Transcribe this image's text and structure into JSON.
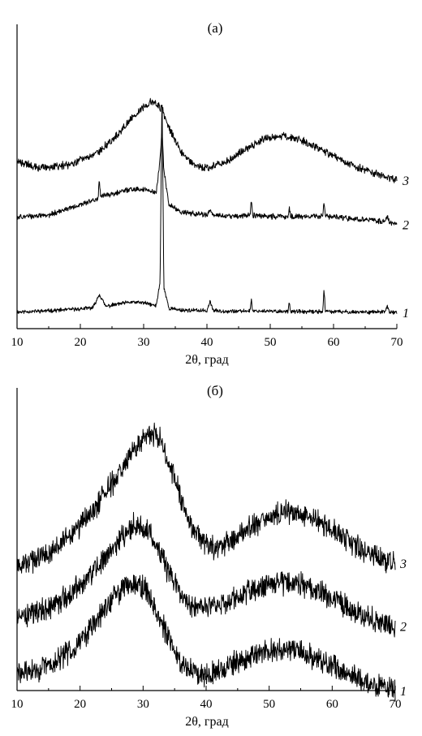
{
  "figure": {
    "panels": [
      {
        "title": "(a)",
        "xlabel": "2θ, град",
        "x_ticks": [
          "10",
          "20",
          "30",
          "40",
          "50",
          "60",
          "70"
        ]
      },
      {
        "title": "(б)",
        "xlabel": "2θ, град",
        "x_ticks": [
          "10",
          "20",
          "30",
          "40",
          "50",
          "60",
          "70"
        ]
      }
    ]
  },
  "chart_data": [
    {
      "type": "line",
      "title": "(a)",
      "xlabel": "2θ, град",
      "ylabel": "",
      "xlim": [
        10,
        70
      ],
      "y_ticks_shown": false,
      "series": [
        {
          "name": "1",
          "x": [
            10,
            15,
            20,
            22,
            23,
            24,
            26,
            28,
            30,
            32,
            32.6,
            32.9,
            33.2,
            34,
            36,
            40,
            40.5,
            41,
            45,
            46.8,
            47,
            47.2,
            50,
            52.8,
            53,
            53.2,
            56,
            58.3,
            58.5,
            58.7,
            62,
            66,
            68.2,
            68.5,
            68.8,
            70
          ],
          "y": [
            1.0,
            1.2,
            1.5,
            1.7,
            3.9,
            1.9,
            2.3,
            2.6,
            2.5,
            2.0,
            6.0,
            37.0,
            5.0,
            1.6,
            1.3,
            1.2,
            2.8,
            1.2,
            1.1,
            1.2,
            3.2,
            1.2,
            1.1,
            1.1,
            2.8,
            1.1,
            1.0,
            1.1,
            4.8,
            1.1,
            1.0,
            1.0,
            1.0,
            2.0,
            1.0,
            0.9
          ],
          "noise": 0.25
        },
        {
          "name": "2",
          "x": [
            10,
            15,
            20,
            22.8,
            23,
            23.2,
            26,
            28,
            30,
            32,
            32.6,
            32.9,
            33.2,
            34,
            36,
            40,
            40.5,
            41,
            45,
            46.8,
            47,
            47.2,
            50,
            52.8,
            53,
            53.2,
            56,
            58.3,
            58.5,
            58.7,
            62,
            66,
            68.2,
            68.5,
            68.8,
            70
          ],
          "y": [
            16.5,
            16.8,
            18.5,
            19.5,
            22.5,
            19.8,
            20.5,
            21.0,
            21.0,
            20.5,
            26.0,
            30.5,
            24.0,
            18.5,
            17.3,
            16.8,
            17.8,
            16.7,
            16.6,
            16.8,
            19.5,
            16.8,
            16.6,
            16.6,
            18.0,
            16.6,
            16.5,
            16.7,
            19.2,
            16.6,
            16.3,
            16.0,
            15.8,
            16.8,
            15.6,
            15.3
          ],
          "noise": 0.35
        },
        {
          "name": "3",
          "x": [
            10,
            14,
            18,
            22,
            25,
            28,
            30,
            31,
            32,
            33,
            34,
            36,
            38,
            40,
            43,
            46,
            49,
            52,
            55,
            58,
            61,
            64,
            67,
            70
          ],
          "y": [
            25.5,
            24.5,
            25.0,
            26.5,
            29.0,
            32.5,
            34.5,
            35.3,
            35.0,
            34.0,
            31.0,
            27.0,
            25.0,
            24.5,
            25.5,
            27.5,
            29.3,
            29.8,
            29.0,
            27.5,
            26.0,
            24.5,
            23.5,
            22.5
          ],
          "noise": 0.5
        }
      ],
      "series_labels": [
        "1",
        "2",
        "3"
      ]
    },
    {
      "type": "line",
      "title": "(б)",
      "xlabel": "2θ, град",
      "ylabel": "",
      "xlim": [
        10,
        70
      ],
      "y_ticks_shown": false,
      "series": [
        {
          "name": "1",
          "x": [
            10,
            13,
            16,
            19,
            22,
            25,
            27,
            28.5,
            30,
            31,
            32,
            34,
            36,
            38,
            40,
            43,
            46,
            49,
            52,
            55,
            58,
            61,
            64,
            67,
            70
          ],
          "y": [
            2.0,
            2.3,
            3.2,
            5.0,
            7.5,
            10.5,
            12.2,
            12.6,
            12.1,
            11.0,
            9.5,
            6.0,
            3.3,
            2.2,
            2.0,
            2.6,
            3.6,
            4.4,
            4.8,
            4.5,
            3.6,
            2.5,
            1.4,
            0.6,
            0.0
          ],
          "noise": 1.1
        },
        {
          "name": "2",
          "x": [
            10,
            13,
            16,
            19,
            22,
            25,
            27,
            28.5,
            30,
            31,
            32,
            34,
            36,
            38,
            40,
            43,
            46,
            49,
            52,
            55,
            58,
            61,
            64,
            67,
            70
          ],
          "y": [
            8.5,
            9.0,
            10.0,
            11.5,
            13.8,
            16.5,
            18.3,
            19.2,
            19.0,
            18.3,
            16.8,
            13.8,
            11.2,
            9.8,
            9.5,
            10.2,
            11.3,
            12.2,
            12.6,
            12.3,
            11.5,
            10.3,
            9.0,
            8.0,
            7.5
          ],
          "noise": 1.1
        },
        {
          "name": "3",
          "x": [
            10,
            13,
            16,
            19,
            22,
            25,
            28,
            30,
            31.5,
            32.5,
            33.5,
            35,
            37,
            39,
            41,
            44,
            47,
            50,
            53,
            56,
            59,
            62,
            65,
            68,
            70
          ],
          "y": [
            14.5,
            15.2,
            16.5,
            18.5,
            21.0,
            24.0,
            27.3,
            29.0,
            29.7,
            29.3,
            27.8,
            24.5,
            20.2,
            17.3,
            16.5,
            17.5,
            19.0,
            20.2,
            20.7,
            20.3,
            19.2,
            17.8,
            16.3,
            15.2,
            14.8
          ],
          "noise": 1.1
        }
      ],
      "series_labels": [
        "1",
        "2",
        "3"
      ]
    }
  ]
}
